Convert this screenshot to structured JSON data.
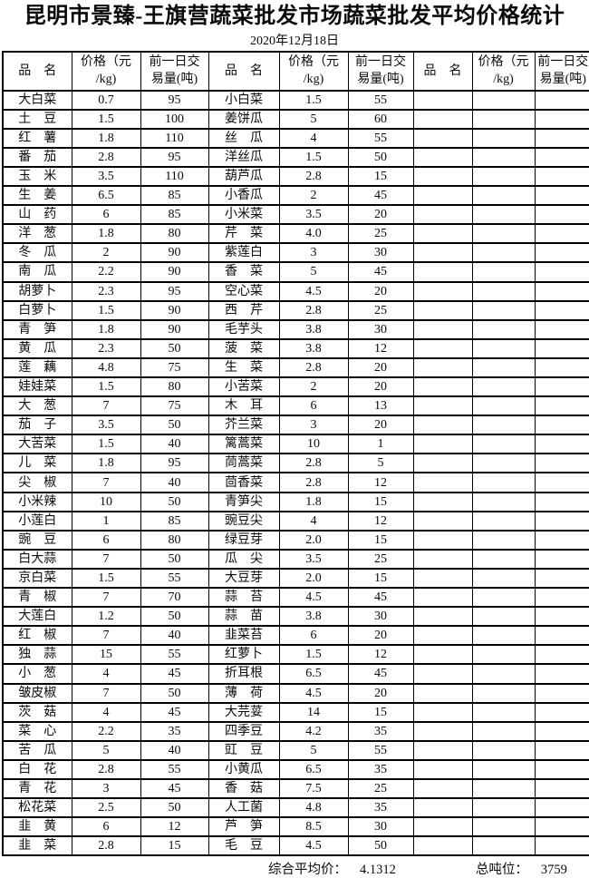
{
  "title": "昆明市景臻-王旗营蔬菜批发市场蔬菜批发平均价格统计",
  "date": "2020年12月18日",
  "table": {
    "headers": {
      "name": "品　名",
      "price": "价格（元\n/kg)",
      "volume": "前一日交\n易量(吨)"
    },
    "groups": [
      {
        "rows": [
          {
            "name": "大白菜",
            "price": "0.7",
            "volume": "95"
          },
          {
            "name": "土　豆",
            "price": "1.5",
            "volume": "100"
          },
          {
            "name": "红　薯",
            "price": "1.8",
            "volume": "110"
          },
          {
            "name": "番　茄",
            "price": "2.8",
            "volume": "95"
          },
          {
            "name": "玉　米",
            "price": "3.5",
            "volume": "110"
          },
          {
            "name": "生　姜",
            "price": "6.5",
            "volume": "85"
          },
          {
            "name": "山　药",
            "price": "6",
            "volume": "85"
          },
          {
            "name": "洋　葱",
            "price": "1.8",
            "volume": "80"
          },
          {
            "name": "冬　瓜",
            "price": "2",
            "volume": "90"
          },
          {
            "name": "南　瓜",
            "price": "2.2",
            "volume": "90"
          },
          {
            "name": "胡萝卜",
            "price": "2.3",
            "volume": "95"
          },
          {
            "name": "白萝卜",
            "price": "1.5",
            "volume": "90"
          },
          {
            "name": "青　笋",
            "price": "1.8",
            "volume": "90"
          },
          {
            "name": "黄　瓜",
            "price": "2.3",
            "volume": "50"
          },
          {
            "name": "莲　藕",
            "price": "4.8",
            "volume": "75"
          },
          {
            "name": "娃娃菜",
            "price": "1.5",
            "volume": "80"
          },
          {
            "name": "大　葱",
            "price": "7",
            "volume": "75"
          },
          {
            "name": "茄　子",
            "price": "3.5",
            "volume": "50"
          },
          {
            "name": "大苦菜",
            "price": "1.5",
            "volume": "40"
          },
          {
            "name": "儿　菜",
            "price": "1.8",
            "volume": "95"
          },
          {
            "name": "尖　椒",
            "price": "7",
            "volume": "40"
          },
          {
            "name": "小米辣",
            "price": "10",
            "volume": "50"
          },
          {
            "name": "小莲白",
            "price": "1",
            "volume": "85"
          },
          {
            "name": "豌　豆",
            "price": "6",
            "volume": "80"
          },
          {
            "name": "白大蒜",
            "price": "7",
            "volume": "50"
          },
          {
            "name": "京白菜",
            "price": "1.5",
            "volume": "55"
          },
          {
            "name": "青　椒",
            "price": "7",
            "volume": "70"
          },
          {
            "name": "大莲白",
            "price": "1.2",
            "volume": "50"
          },
          {
            "name": "红　椒",
            "price": "7",
            "volume": "40"
          },
          {
            "name": "独　蒜",
            "price": "15",
            "volume": "55"
          },
          {
            "name": "小　葱",
            "price": "4",
            "volume": "45"
          },
          {
            "name": "皱皮椒",
            "price": "7",
            "volume": "50"
          },
          {
            "name": "茨　菇",
            "price": "4",
            "volume": "45"
          },
          {
            "name": "菜　心",
            "price": "2.2",
            "volume": "35"
          },
          {
            "name": "苦　瓜",
            "price": "5",
            "volume": "40"
          },
          {
            "name": "白　花",
            "price": "2.8",
            "volume": "55"
          },
          {
            "name": "青　花",
            "price": "3",
            "volume": "45"
          },
          {
            "name": "松花菜",
            "price": "2.5",
            "volume": "50"
          },
          {
            "name": "韭　黄",
            "price": "6",
            "volume": "12"
          },
          {
            "name": "韭　菜",
            "price": "2.8",
            "volume": "15"
          }
        ]
      },
      {
        "rows": [
          {
            "name": "小白菜",
            "price": "1.5",
            "volume": "55"
          },
          {
            "name": "姜饼瓜",
            "price": "5",
            "volume": "60"
          },
          {
            "name": "丝　瓜",
            "price": "4",
            "volume": "55"
          },
          {
            "name": "洋丝瓜",
            "price": "1.5",
            "volume": "50"
          },
          {
            "name": "葫芦瓜",
            "price": "2.8",
            "volume": "15"
          },
          {
            "name": "小香瓜",
            "price": "2",
            "volume": "45"
          },
          {
            "name": "小米菜",
            "price": "3.5",
            "volume": "20"
          },
          {
            "name": "芹　菜",
            "price": "4.0",
            "volume": "25"
          },
          {
            "name": "紫莲白",
            "price": "3",
            "volume": "30"
          },
          {
            "name": "香　菜",
            "price": "5",
            "volume": "45"
          },
          {
            "name": "空心菜",
            "price": "4.5",
            "volume": "20"
          },
          {
            "name": "西　芹",
            "price": "2.8",
            "volume": "25"
          },
          {
            "name": "毛芋头",
            "price": "3.8",
            "volume": "30"
          },
          {
            "name": "菠　菜",
            "price": "3.8",
            "volume": "12"
          },
          {
            "name": "生　菜",
            "price": "2.8",
            "volume": "20"
          },
          {
            "name": "小苦菜",
            "price": "2",
            "volume": "20"
          },
          {
            "name": "木　耳",
            "price": "6",
            "volume": "13"
          },
          {
            "name": "芥兰菜",
            "price": "3",
            "volume": "20"
          },
          {
            "name": "篱蒿菜",
            "price": "10",
            "volume": "1"
          },
          {
            "name": "茼蒿菜",
            "price": "2.8",
            "volume": "5"
          },
          {
            "name": "茴香菜",
            "price": "2.8",
            "volume": "12"
          },
          {
            "name": "青笋尖",
            "price": "1.8",
            "volume": "15"
          },
          {
            "name": "豌豆尖",
            "price": "4",
            "volume": "12"
          },
          {
            "name": "绿豆芽",
            "price": "2.0",
            "volume": "15"
          },
          {
            "name": "瓜　尖",
            "price": "3.5",
            "volume": "25"
          },
          {
            "name": "大豆芽",
            "price": "2.0",
            "volume": "15"
          },
          {
            "name": "蒜　苔",
            "price": "4.5",
            "volume": "45"
          },
          {
            "name": "蒜　苗",
            "price": "3.8",
            "volume": "30"
          },
          {
            "name": "韭菜苔",
            "price": "6",
            "volume": "20"
          },
          {
            "name": "红萝卜",
            "price": "1.5",
            "volume": "12"
          },
          {
            "name": "折耳根",
            "price": "6.5",
            "volume": "45"
          },
          {
            "name": "薄　荷",
            "price": "4.5",
            "volume": "20"
          },
          {
            "name": "大芫荽",
            "price": "14",
            "volume": "15"
          },
          {
            "name": "四季豆",
            "price": "4.2",
            "volume": "35"
          },
          {
            "name": "豇　豆",
            "price": "5",
            "volume": "55"
          },
          {
            "name": "小黄瓜",
            "price": "6.5",
            "volume": "35"
          },
          {
            "name": "香　菇",
            "price": "7.5",
            "volume": "25"
          },
          {
            "name": "人工菌",
            "price": "4.8",
            "volume": "35"
          },
          {
            "name": "芦　笋",
            "price": "8.5",
            "volume": "30"
          },
          {
            "name": "毛　豆",
            "price": "4.5",
            "volume": "50"
          }
        ]
      },
      {
        "rows": []
      }
    ]
  },
  "footer": {
    "avg_label": "综合平均价：",
    "avg_value": "4.1312",
    "tonnage_label": "总吨位：",
    "tonnage_value": "3759"
  }
}
